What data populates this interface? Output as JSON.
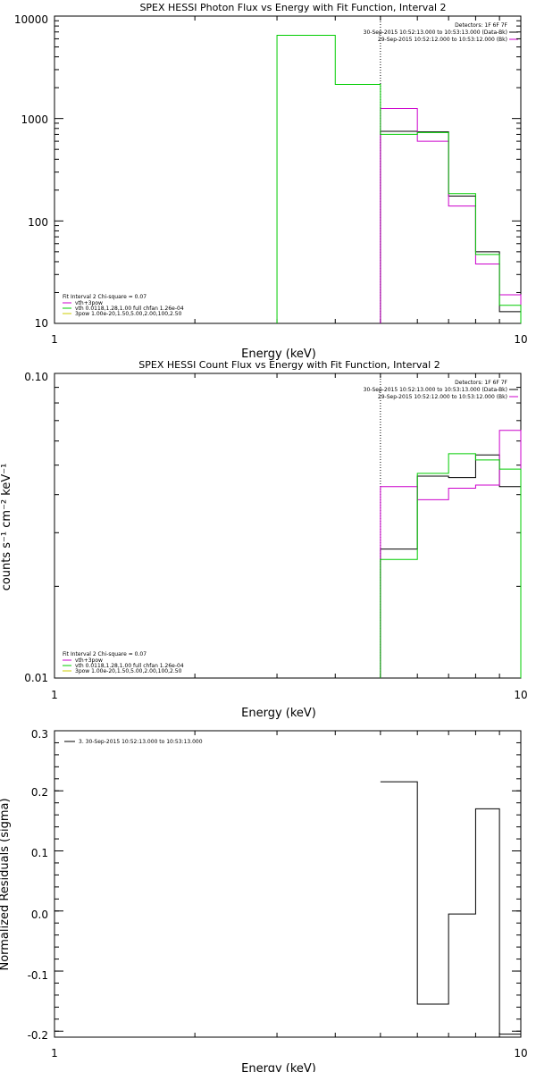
{
  "chart_data": [
    {
      "type": "line",
      "title": "SPEX HESSI Photon Flux vs Energy with Fit Function, Interval 2",
      "xlabel": "Energy (keV)",
      "ylabel": "",
      "xscale": "log",
      "yscale": "log",
      "xlim": [
        1,
        10
      ],
      "ylim": [
        10,
        10000
      ],
      "x_ticks": [
        "1",
        "10"
      ],
      "y_ticks": [
        {
          "label": "10",
          "value": 10
        },
        {
          "label": "100",
          "value": 100
        },
        {
          "label": "1000",
          "value": 1000
        },
        {
          "label": "10000",
          "value": 10000
        }
      ],
      "vline_x": 5.0,
      "header_lines": [
        {
          "text": "Detectors: 1F 6F 7F",
          "color": ""
        },
        {
          "text": "30-Sep-2015 10:52:13.000 to 10:53:13.000 (Data-Bk)",
          "color": "#000000"
        },
        {
          "text": "29-Sep-2015 10:52:12.000 to 10:53:12.000 (Bk)",
          "color": "#cc00cc"
        }
      ],
      "fit_legend": [
        {
          "text": "Fit Interval 2   Chi-square = 0.07",
          "color": ""
        },
        {
          "text": "vth+3pow",
          "color": "#cc00cc"
        },
        {
          "text": "vth 0.0118,1.28,1.00  full chfan 1.26e-04",
          "color": "#00cc00"
        },
        {
          "text": "3pow 1.00e-20,1.50,5.00,2.00,100,2.50",
          "color": "#cccc00"
        }
      ],
      "series": [
        {
          "name": "Data-Bk",
          "color": "#000000",
          "edges": [
            5,
            6,
            7,
            8,
            9,
            10
          ],
          "values": [
            750,
            740,
            175,
            50,
            13
          ]
        },
        {
          "name": "Bk",
          "color": "#cc00cc",
          "edges": [
            5,
            6,
            7,
            8,
            9,
            10
          ],
          "values": [
            1250,
            600,
            140,
            38,
            19
          ]
        },
        {
          "name": "vth+3pow",
          "color": "#00cc00",
          "edges": [
            3,
            4,
            5,
            6,
            7,
            8,
            9,
            10
          ],
          "values": [
            6500,
            2150,
            700,
            730,
            185,
            47,
            15
          ]
        }
      ]
    },
    {
      "type": "line",
      "title": "SPEX HESSI Count Flux vs Energy with Fit Function, Interval 2",
      "xlabel": "Energy (keV)",
      "ylabel": "counts s⁻¹ cm⁻² keV⁻¹",
      "xscale": "log",
      "yscale": "log",
      "xlim": [
        1,
        10
      ],
      "ylim": [
        0.01,
        0.1
      ],
      "x_ticks": [
        "1",
        "10"
      ],
      "y_ticks": [
        {
          "label": "0.01",
          "value": 0.01
        },
        {
          "label": "0.10",
          "value": 0.1
        }
      ],
      "vline_x": 5.0,
      "header_lines": [
        {
          "text": "Detectors: 1F 6F 7F",
          "color": ""
        },
        {
          "text": "30-Sep-2015 10:52:13.000 to 10:53:13.000 (Data-Bk)",
          "color": "#000000"
        },
        {
          "text": "29-Sep-2015 10:52:12.000 to 10:53:12.000 (Bk)",
          "color": "#cc00cc"
        }
      ],
      "fit_legend": [
        {
          "text": "Fit Interval 2   Chi-square = 0.07",
          "color": ""
        },
        {
          "text": "vth+3pow",
          "color": "#cc00cc"
        },
        {
          "text": "vth 0.0118,1.28,1.00  full chfan 1.26e-04",
          "color": "#00cc00"
        },
        {
          "text": "3pow 1.00e-20,1.50,5.00,2.00,100,2.50",
          "color": "#cccc00"
        }
      ],
      "series": [
        {
          "name": "Data-Bk",
          "color": "#000000",
          "edges": [
            5,
            6,
            7,
            8,
            9,
            10
          ],
          "values": [
            0.0265,
            0.046,
            0.0455,
            0.054,
            0.0425
          ]
        },
        {
          "name": "Bk",
          "color": "#cc00cc",
          "edges": [
            5,
            6,
            7,
            8,
            9,
            10
          ],
          "values": [
            0.0425,
            0.0385,
            0.042,
            0.043,
            0.065
          ]
        },
        {
          "name": "vth+3pow",
          "color": "#00cc00",
          "edges": [
            5,
            6,
            7,
            8,
            9,
            10
          ],
          "values": [
            0.0245,
            0.047,
            0.0545,
            0.052,
            0.0485
          ]
        }
      ]
    },
    {
      "type": "line",
      "title": "",
      "xlabel": "Energy (keV)",
      "ylabel": "Normalized Residuals (sigma)",
      "xscale": "log",
      "yscale": "linear",
      "xlim": [
        1,
        10
      ],
      "ylim": [
        -0.21,
        0.3
      ],
      "x_ticks": [
        "1",
        "10"
      ],
      "y_ticks": [
        {
          "label": "-0.2",
          "value": -0.2
        },
        {
          "label": "-0.1",
          "value": -0.1
        },
        {
          "label": "0.0",
          "value": 0.0
        },
        {
          "label": "0.1",
          "value": 0.1
        },
        {
          "label": "0.2",
          "value": 0.2
        },
        {
          "label": "0.3",
          "value": 0.3
        }
      ],
      "legend": [
        {
          "text": "3. 30-Sep-2015 10:52:13.000 to 10:53:13.000",
          "color": "#000000"
        }
      ],
      "series": [
        {
          "name": "3. 30-Sep-2015 10:52:13.000 to 10:53:13.000",
          "color": "#000000",
          "edges": [
            5,
            6,
            7,
            8,
            9,
            10
          ],
          "values": [
            0.215,
            -0.155,
            -0.005,
            0.17,
            -0.205
          ]
        }
      ]
    }
  ]
}
